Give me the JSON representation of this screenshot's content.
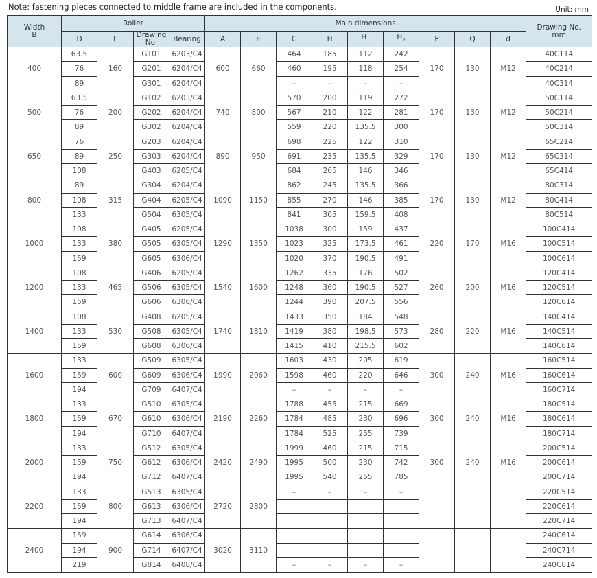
{
  "note": "Note: fastening pieces connected to middle frame are included in the components.",
  "unit": "Unit: mm",
  "header": {
    "width": "Width",
    "width_b": "B",
    "roller": "Roller",
    "main": "Main dimensions",
    "drawing_no": "Drawing No.",
    "drawing_mm": "mm",
    "cols": [
      "D",
      "L",
      "Drawing No.",
      "Bearing",
      "A",
      "E",
      "C",
      "H",
      "H1",
      "H2",
      "P",
      "Q",
      "d"
    ]
  },
  "groups": [
    {
      "B": "400",
      "L": "160",
      "A": "600",
      "E": "660",
      "P": "170",
      "Q": "130",
      "d": "M12",
      "rows": [
        [
          "63.5",
          "G101",
          "6203/C4",
          "464",
          "185",
          "112",
          "242",
          "40C114"
        ],
        [
          "76",
          "G201",
          "6204/C4",
          "460",
          "195",
          "118",
          "254",
          "40C214"
        ],
        [
          "89",
          "G301",
          "6204/C4",
          "–",
          "–",
          "–",
          "–",
          "40C314"
        ]
      ]
    },
    {
      "B": "500",
      "L": "200",
      "A": "740",
      "E": "800",
      "P": "170",
      "Q": "130",
      "d": "M12",
      "rows": [
        [
          "63.5",
          "G102",
          "6203/C4",
          "570",
          "200",
          "119",
          "272",
          "50C114"
        ],
        [
          "76",
          "G202",
          "6204/C4",
          "567",
          "210",
          "122",
          "281",
          "50C214"
        ],
        [
          "89",
          "G302",
          "6204/C4",
          "559",
          "220",
          "135.5",
          "300",
          "50C314"
        ]
      ]
    },
    {
      "B": "650",
      "L": "250",
      "A": "890",
      "E": "950",
      "P": "170",
      "Q": "130",
      "d": "M12",
      "rows": [
        [
          "76",
          "G203",
          "6204/C4",
          "698",
          "225",
          "122",
          "310",
          "65C214"
        ],
        [
          "89",
          "G303",
          "6204/C4",
          "691",
          "235",
          "135.5",
          "329",
          "65C314"
        ],
        [
          "108",
          "G403",
          "6205/C4",
          "684",
          "265",
          "146",
          "346",
          "65C414"
        ]
      ]
    },
    {
      "B": "800",
      "L": "315",
      "A": "1090",
      "E": "1150",
      "P": "170",
      "Q": "130",
      "d": "M12",
      "rows": [
        [
          "89",
          "G304",
          "6204/C4",
          "862",
          "245",
          "135.5",
          "366",
          "80C314"
        ],
        [
          "108",
          "G404",
          "6205/C4",
          "855",
          "270",
          "146",
          "385",
          "80C414"
        ],
        [
          "133",
          "G504",
          "6305/C4",
          "841",
          "305",
          "159.5",
          "408",
          "80C514"
        ]
      ]
    },
    {
      "B": "1000",
      "L": "380",
      "A": "1290",
      "E": "1350",
      "P": "220",
      "Q": "170",
      "d": "M16",
      "rows": [
        [
          "108",
          "G405",
          "6205/C4",
          "1038",
          "300",
          "159",
          "437",
          "100C414"
        ],
        [
          "133",
          "G505",
          "6305/C4",
          "1023",
          "325",
          "173.5",
          "461",
          "100C514"
        ],
        [
          "159",
          "G605",
          "6306/C4",
          "1020",
          "370",
          "190.5",
          "491",
          "100C614"
        ]
      ]
    },
    {
      "B": "1200",
      "L": "465",
      "A": "1540",
      "E": "1600",
      "P": "260",
      "Q": "200",
      "d": "M16",
      "rows": [
        [
          "108",
          "G406",
          "6205/C4",
          "1262",
          "335",
          "176",
          "502",
          "120C414"
        ],
        [
          "133",
          "G506",
          "6305/C4",
          "1248",
          "360",
          "190.5",
          "527",
          "120C514"
        ],
        [
          "159",
          "G606",
          "6306/C4",
          "1244",
          "390",
          "207.5",
          "556",
          "120C614"
        ]
      ]
    },
    {
      "B": "1400",
      "L": "530",
      "A": "1740",
      "E": "1810",
      "P": "280",
      "Q": "220",
      "d": "M16",
      "rows": [
        [
          "108",
          "G408",
          "6205/C4",
          "1433",
          "350",
          "184",
          "548",
          "140C414"
        ],
        [
          "133",
          "G508",
          "6305/C4",
          "1419",
          "380",
          "198.5",
          "573",
          "140C514"
        ],
        [
          "159",
          "G608",
          "6306/C4",
          "1415",
          "410",
          "215.5",
          "602",
          "140C614"
        ]
      ]
    },
    {
      "B": "1600",
      "L": "600",
      "A": "1990",
      "E": "2060",
      "P": "300",
      "Q": "240",
      "d": "M16",
      "rows": [
        [
          "133",
          "G509",
          "6305/C4",
          "1603",
          "430",
          "205",
          "619",
          "160C514"
        ],
        [
          "159",
          "G609",
          "6306/C4",
          "1598",
          "460",
          "220",
          "646",
          "160C614"
        ],
        [
          "194",
          "G709",
          "6407/C4",
          "–",
          "–",
          "–",
          "–",
          "160C714"
        ]
      ]
    },
    {
      "B": "1800",
      "L": "670",
      "A": "2190",
      "E": "2260",
      "P": "300",
      "Q": "240",
      "d": "M16",
      "rows": [
        [
          "133",
          "G510",
          "6305/C4",
          "1788",
          "455",
          "215",
          "669",
          "180C514"
        ],
        [
          "159",
          "G610",
          "6306/C4",
          "1784",
          "485",
          "230",
          "696",
          "180C614"
        ],
        [
          "194",
          "G710",
          "6407/C4",
          "1784",
          "525",
          "255",
          "739",
          "180C714"
        ]
      ]
    },
    {
      "B": "2000",
      "L": "750",
      "A": "2420",
      "E": "2490",
      "P": "300",
      "Q": "240",
      "d": "M16",
      "rows": [
        [
          "133",
          "G512",
          "6305/C4",
          "1999",
          "460",
          "215",
          "715",
          "200C514"
        ],
        [
          "159",
          "G612",
          "6306/C4",
          "1995",
          "500",
          "230",
          "742",
          "200C614"
        ],
        [
          "194",
          "G712",
          "6407/C4",
          "1995",
          "540",
          "255",
          "785",
          "200C714"
        ]
      ]
    },
    {
      "B": "2200",
      "L": "800",
      "A": "2720",
      "E": "2800",
      "P": "",
      "Q": "",
      "d": "",
      "rows": [
        [
          "133",
          "G513",
          "6305/C4",
          "–",
          "–",
          "–",
          "–",
          "220C514"
        ],
        [
          "159",
          "G613",
          "6306/C4",
          "",
          "",
          "",
          "",
          "220C614"
        ],
        [
          "194",
          "G713",
          "6407/C4",
          "",
          "",
          "",
          "",
          "220C714"
        ]
      ]
    },
    {
      "B": "2400",
      "L": "900",
      "A": "3020",
      "E": "3110",
      "P": "",
      "Q": "",
      "d": "",
      "rows": [
        [
          "159",
          "G614",
          "6306/C4",
          "",
          "",
          "",
          "",
          "240C614"
        ],
        [
          "194",
          "G714",
          "6407/C4",
          "",
          "",
          "",
          "",
          "240C714"
        ],
        [
          "219",
          "G814",
          "6408/C4",
          "–",
          "–",
          "–",
          "–",
          "240C814"
        ]
      ]
    }
  ]
}
